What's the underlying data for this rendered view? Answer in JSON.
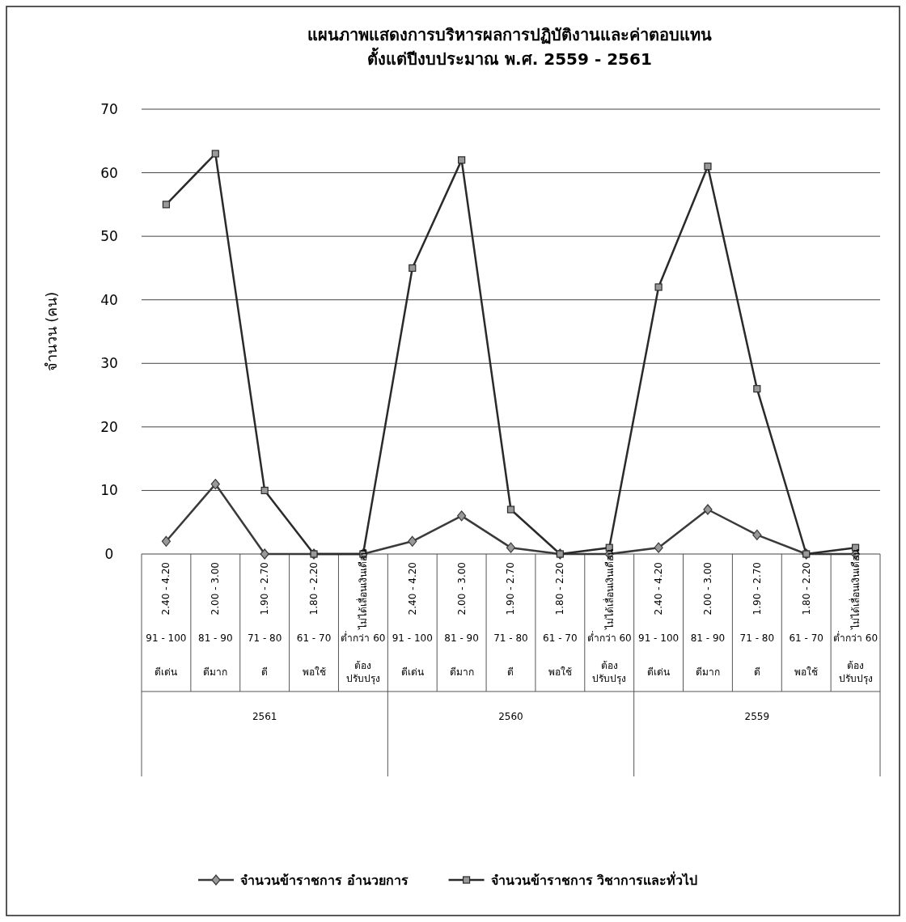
{
  "chart_data": {
    "type": "line",
    "title": "แผนภาพแสดงการบริหารผลการปฏิบัติงานและค่าตอบแทน",
    "subtitle": "ตั้งแต่ปีงบประมาณ พ.ศ. 2559 - 2561",
    "ylabel": "จำนวน (คน)",
    "categories": [
      "2.40 - 4.20\n91 - 100\nดีเด่น",
      "2.00 - 3.00\n81 - 90\nดีมาก",
      "1.90 - 2.70\n71 - 80\nดี",
      "1.80 - 2.20\n61 - 70\nพอใช้",
      "ไม่ได้เลื่อนเงินเดือน\nต่ำกว่า 60\nต้อง ปรับปรุง",
      "2.40 - 4.20\n91 - 100\nดีเด่น",
      "2.00 - 3.00\n81 - 90\nดีมาก",
      "1.90 - 2.70\n71 - 80\nดี",
      "1.80 - 2.20\n61 - 70\nพอใช้",
      "ไม่ได้เลื่อนเงินเดือน\nต่ำกว่า 60\nต้อง ปรับปรุง",
      "2.40 - 4.20\n91 - 100\nดีเด่น",
      "2.00 - 3.00\n81 - 90\nดีมาก",
      "1.90 - 2.70\n71 - 80\nดี",
      "1.80 - 2.20\n61 - 70\nพอใช้",
      "ไม่ได้เลื่อนเงินเดือน\nต่ำกว่า 60\nต้อง ปรับปรุง"
    ],
    "annotations": [
      "2561",
      "2560",
      "2559"
    ],
    "series": [
      {
        "name": "จำนวนข้าราชการ  อำนวยการ",
        "color": "#3a3a3a",
        "marker": "diamond",
        "values": [
          2,
          11,
          0,
          0,
          0,
          2,
          6,
          1,
          0,
          0,
          1,
          7,
          3,
          0,
          0
        ]
      },
      {
        "name": "จำนวนข้าราชการ  วิชาการและทั่วไป",
        "color": "#2a2a2a",
        "marker": "square",
        "values": [
          55,
          63,
          10,
          0,
          0,
          45,
          62,
          7,
          0,
          1,
          42,
          61,
          26,
          0,
          1
        ]
      }
    ],
    "ylim": [
      0,
      70
    ],
    "yticks": [
      0,
      10,
      20,
      30,
      40,
      50,
      60,
      70
    ],
    "grid": "y",
    "legend": "bottom"
  }
}
